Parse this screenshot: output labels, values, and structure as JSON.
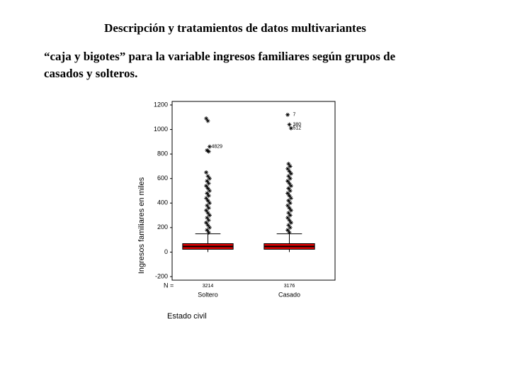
{
  "header": {
    "title": "Descripción y tratamientos de datos multivariantes",
    "subtitle_line1": "“caja y bigotes” para la variable ingresos familiares según grupos de",
    "subtitle_line2": "casados y solteros."
  },
  "chart_data": {
    "type": "boxplot",
    "y_label": "Ingresos familiares en miles",
    "x_label": "Estado civil",
    "n_label": "N =",
    "ylim": [
      -200,
      1200
    ],
    "yticks": [
      -200,
      0,
      200,
      400,
      600,
      800,
      1000,
      1200
    ],
    "box_color": "#e00000",
    "series": [
      {
        "name": "Soltero",
        "n": 3214,
        "whisker_low": 0,
        "q1": 23,
        "median": 46,
        "q3": 69,
        "whisker_high": 149,
        "outliers": [
          1090,
          1070,
          860,
          830,
          820,
          650,
          620,
          600,
          580,
          560,
          540,
          520,
          500,
          480,
          460,
          440,
          420,
          400,
          380,
          360,
          340,
          320,
          300,
          280,
          260,
          240,
          220,
          200,
          180,
          160
        ],
        "labeled_outliers": [
          {
            "value": 860,
            "label": "4829"
          }
        ]
      },
      {
        "name": "Casado",
        "n": 3176,
        "whisker_low": 0,
        "q1": 23,
        "median": 46,
        "q3": 69,
        "whisker_high": 149,
        "outliers": [
          1120,
          1040,
          1010,
          720,
          700,
          680,
          660,
          640,
          620,
          600,
          580,
          560,
          540,
          520,
          500,
          480,
          460,
          440,
          420,
          400,
          380,
          360,
          340,
          320,
          300,
          280,
          260,
          240,
          220,
          200,
          180,
          160
        ],
        "labeled_outliers": [
          {
            "value": 1120,
            "label": "7"
          },
          {
            "value": 1040,
            "label": "380"
          },
          {
            "value": 1010,
            "label": "512"
          }
        ]
      }
    ]
  }
}
